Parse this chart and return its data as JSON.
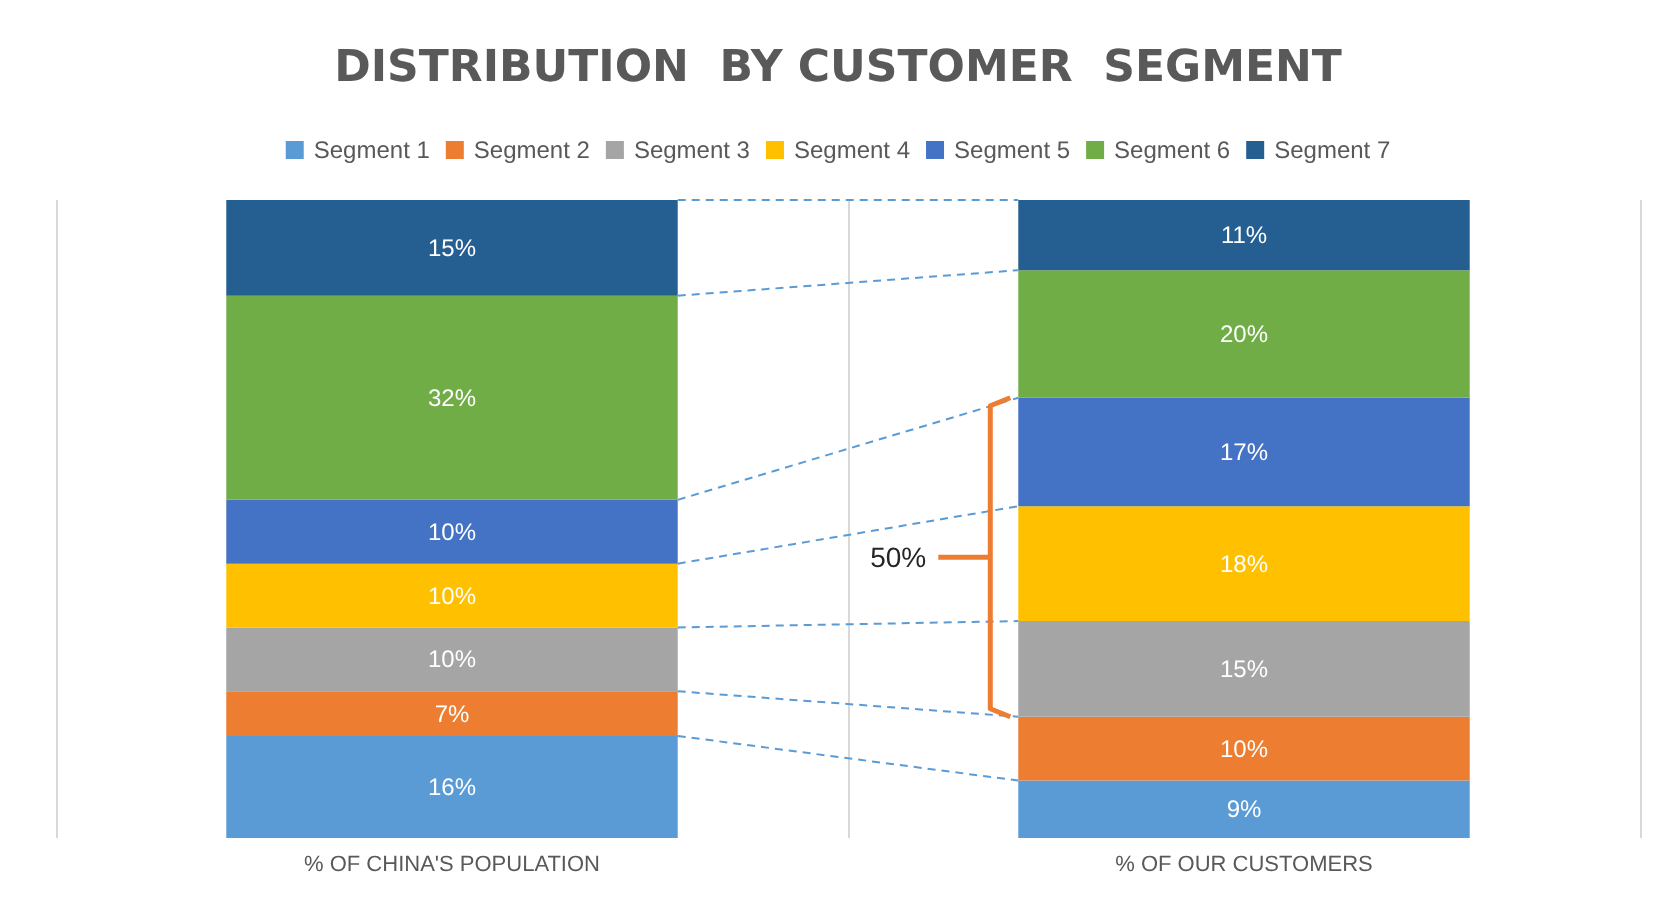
{
  "chart_data": {
    "type": "bar",
    "stacked": true,
    "title": "DISTRIBUTION  BY CUSTOMER  SEGMENT",
    "categories": [
      "% OF CHINA'S POPULATION",
      "% OF OUR CUSTOMERS"
    ],
    "legend": "top",
    "grid": "x",
    "series": [
      {
        "name": "Segment 1",
        "color": "#5b9bd5",
        "values": [
          16,
          9
        ],
        "value_labels": [
          "16%",
          "9%"
        ]
      },
      {
        "name": "Segment 2",
        "color": "#ed7d31",
        "values": [
          7,
          10
        ],
        "value_labels": [
          "7%",
          "10%"
        ]
      },
      {
        "name": "Segment 3",
        "color": "#a5a5a5",
        "values": [
          10,
          15
        ],
        "value_labels": [
          "10%",
          "15%"
        ]
      },
      {
        "name": "Segment 4",
        "color": "#ffc000",
        "values": [
          10,
          18
        ],
        "value_labels": [
          "10%",
          "18%"
        ]
      },
      {
        "name": "Segment 5",
        "color": "#4472c4",
        "values": [
          10,
          17
        ],
        "value_labels": [
          "10%",
          "17%"
        ]
      },
      {
        "name": "Segment 6",
        "color": "#70ad47",
        "values": [
          32,
          20
        ],
        "value_labels": [
          "32%",
          "20%"
        ]
      },
      {
        "name": "Segment 7",
        "color": "#255e91",
        "values": [
          15,
          11
        ],
        "value_labels": [
          "15%",
          "11%"
        ]
      }
    ],
    "annotations": [
      "50%"
    ]
  }
}
